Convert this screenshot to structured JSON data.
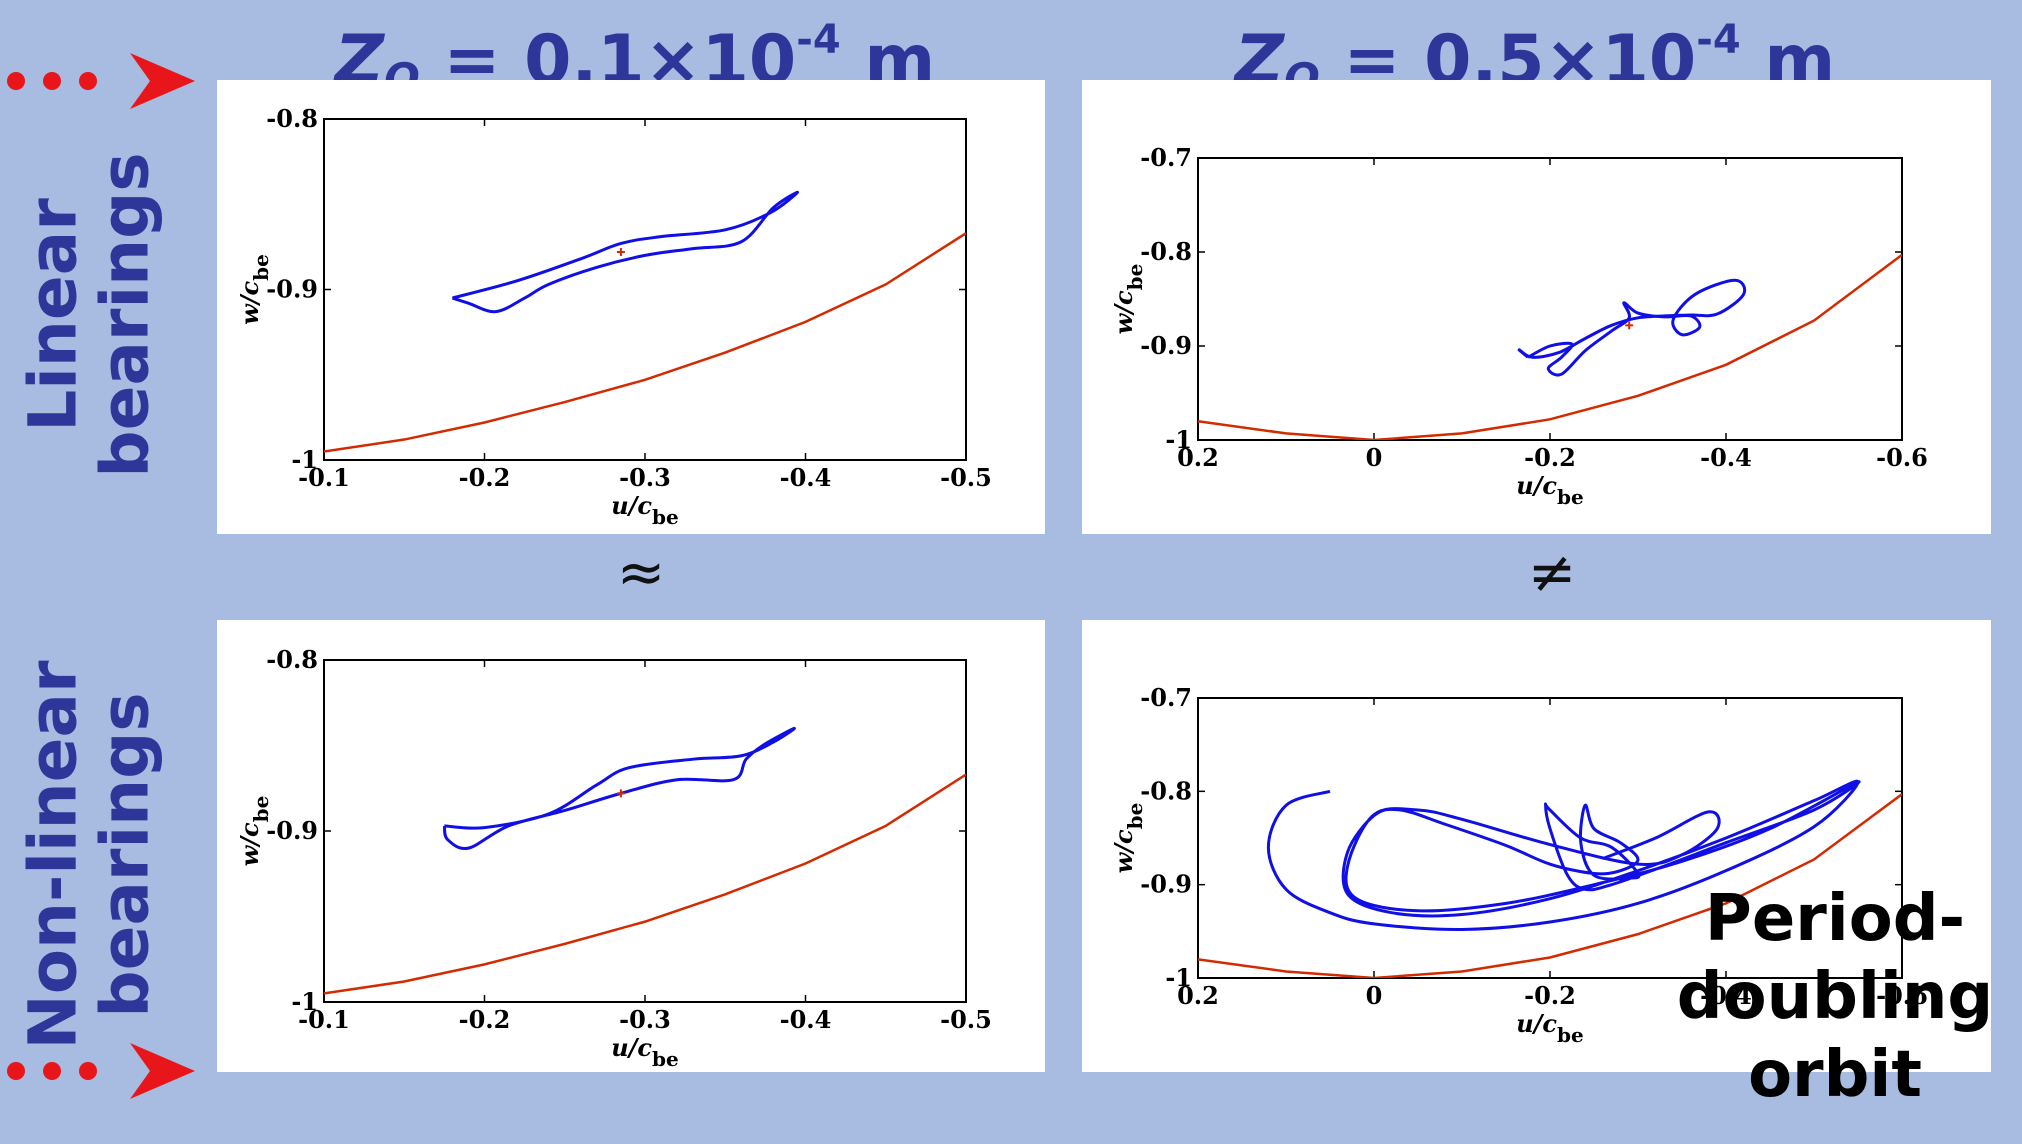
{
  "titles": {
    "left": {
      "var": "Z",
      "sub": "O",
      "eq": " = 0.1×10",
      "exp": "-4",
      "unit": " m"
    },
    "right": {
      "var": "Z",
      "sub": "O",
      "eq": " = 0.5×10",
      "exp": "-4",
      "unit": " m"
    }
  },
  "row_labels": {
    "top": [
      "Linear",
      "bearings"
    ],
    "bottom": [
      "Non-linear",
      "bearings"
    ]
  },
  "relations": {
    "left": "≈",
    "right": "≠"
  },
  "annotation": [
    "Period-",
    "doubling",
    "orbit"
  ],
  "colors": {
    "background": "#a7bce0",
    "title": "#2e3799",
    "orbit": "#1010e6",
    "boundary": "#d42a00",
    "arrow": "#e8161b"
  },
  "chart_data": [
    {
      "id": "linear-z01",
      "type": "line",
      "xlabel_main": "u/c",
      "xlabel_sub": "be",
      "ylabel_main": "w/c",
      "ylabel_sub": "be",
      "xlim": [
        -0.1,
        -0.5
      ],
      "ylim": [
        -1,
        -0.8
      ],
      "xticks": [
        -0.1,
        -0.2,
        -0.3,
        -0.4,
        -0.5
      ],
      "xtick_labels": [
        "-0.1",
        "-0.2",
        "-0.3",
        "-0.4",
        "-0.5"
      ],
      "yticks": [
        -1,
        -0.9,
        -0.8
      ],
      "ytick_labels": [
        "-1",
        "-0.9",
        "-0.8"
      ],
      "boundary": {
        "x": [
          -0.1,
          -0.15,
          -0.2,
          -0.25,
          -0.3,
          -0.35,
          -0.4,
          -0.45,
          -0.5
        ],
        "y": [
          -0.995,
          -0.988,
          -0.978,
          -0.966,
          -0.953,
          -0.937,
          -0.919,
          -0.897,
          -0.867
        ]
      },
      "orbit": {
        "x": [
          -0.18,
          -0.22,
          -0.26,
          -0.285,
          -0.31,
          -0.35,
          -0.378,
          -0.395,
          -0.38,
          -0.36,
          -0.33,
          -0.3,
          -0.27,
          -0.24,
          -0.225,
          -0.207,
          -0.19,
          -0.18
        ],
        "y": [
          -0.905,
          -0.895,
          -0.882,
          -0.873,
          -0.869,
          -0.865,
          -0.855,
          -0.843,
          -0.852,
          -0.872,
          -0.876,
          -0.88,
          -0.887,
          -0.897,
          -0.905,
          -0.913,
          -0.908,
          -0.905
        ]
      },
      "marker": {
        "x": -0.285,
        "y": -0.878
      }
    },
    {
      "id": "linear-z05",
      "type": "line",
      "xlabel_main": "u/c",
      "xlabel_sub": "be",
      "ylabel_main": "w/c",
      "ylabel_sub": "be",
      "xlim": [
        0.2,
        -0.6
      ],
      "ylim": [
        -1,
        -0.7
      ],
      "xticks": [
        0.2,
        0,
        -0.2,
        -0.4,
        -0.6
      ],
      "xtick_labels": [
        "0.2",
        "0",
        "-0.2",
        "-0.4",
        "-0.6"
      ],
      "yticks": [
        -1,
        -0.9,
        -0.8,
        -0.7
      ],
      "ytick_labels": [
        "-1",
        "-0.9",
        "-0.8",
        "-0.7"
      ],
      "boundary": {
        "x": [
          0.2,
          0.1,
          0.0,
          -0.1,
          -0.2,
          -0.3,
          -0.4,
          -0.5,
          -0.6
        ],
        "y": [
          -0.98,
          -0.993,
          -1.0,
          -0.993,
          -0.978,
          -0.953,
          -0.92,
          -0.873,
          -0.803
        ]
      },
      "orbit": {
        "x": [
          -0.175,
          -0.2,
          -0.225,
          -0.213,
          -0.198,
          -0.213,
          -0.24,
          -0.27,
          -0.29,
          -0.284,
          -0.3,
          -0.33,
          -0.36,
          -0.37,
          -0.35,
          -0.34,
          -0.365,
          -0.41,
          -0.42,
          -0.39,
          -0.36,
          -0.33,
          -0.3,
          -0.27,
          -0.24,
          -0.21,
          -0.18,
          -0.165,
          -0.175
        ],
        "y": [
          -0.912,
          -0.9,
          -0.898,
          -0.912,
          -0.924,
          -0.93,
          -0.905,
          -0.884,
          -0.87,
          -0.854,
          -0.865,
          -0.869,
          -0.868,
          -0.88,
          -0.888,
          -0.872,
          -0.845,
          -0.83,
          -0.845,
          -0.866,
          -0.867,
          -0.868,
          -0.87,
          -0.878,
          -0.892,
          -0.907,
          -0.912,
          -0.904,
          -0.912
        ]
      },
      "marker": {
        "x": -0.29,
        "y": -0.878
      }
    },
    {
      "id": "nonlinear-z01",
      "type": "line",
      "xlabel_main": "u/c",
      "xlabel_sub": "be",
      "ylabel_main": "w/c",
      "ylabel_sub": "be",
      "xlim": [
        -0.1,
        -0.5
      ],
      "ylim": [
        -1,
        -0.8
      ],
      "xticks": [
        -0.1,
        -0.2,
        -0.3,
        -0.4,
        -0.5
      ],
      "xtick_labels": [
        "-0.1",
        "-0.2",
        "-0.3",
        "-0.4",
        "-0.5"
      ],
      "yticks": [
        -1,
        -0.9,
        -0.8
      ],
      "ytick_labels": [
        "-1",
        "-0.9",
        "-0.8"
      ],
      "boundary": {
        "x": [
          -0.1,
          -0.15,
          -0.2,
          -0.25,
          -0.3,
          -0.35,
          -0.4,
          -0.45,
          -0.5
        ],
        "y": [
          -0.995,
          -0.988,
          -0.978,
          -0.966,
          -0.953,
          -0.937,
          -0.919,
          -0.897,
          -0.867
        ]
      },
      "orbit": {
        "x": [
          -0.175,
          -0.2,
          -0.24,
          -0.27,
          -0.29,
          -0.33,
          -0.36,
          -0.38,
          -0.393,
          -0.375,
          -0.363,
          -0.355,
          -0.32,
          -0.285,
          -0.25,
          -0.215,
          -0.19,
          -0.177,
          -0.175
        ],
        "y": [
          -0.897,
          -0.898,
          -0.89,
          -0.873,
          -0.863,
          -0.858,
          -0.856,
          -0.848,
          -0.84,
          -0.849,
          -0.858,
          -0.87,
          -0.87,
          -0.878,
          -0.888,
          -0.897,
          -0.91,
          -0.905,
          -0.897
        ]
      },
      "marker": {
        "x": -0.285,
        "y": -0.878
      }
    },
    {
      "id": "nonlinear-z05",
      "type": "line",
      "xlabel_main": "u/c",
      "xlabel_sub": "be",
      "ylabel_main": "w/c",
      "ylabel_sub": "be",
      "xlim": [
        0.2,
        -0.6
      ],
      "ylim": [
        -1,
        -0.7
      ],
      "xticks": [
        0.2,
        0,
        -0.2,
        -0.4,
        -0.6
      ],
      "xtick_labels": [
        "0.2",
        "0",
        "-0.2",
        "-0.4",
        "-0.6"
      ],
      "yticks": [
        -1,
        -0.9,
        -0.8,
        -0.7
      ],
      "ytick_labels": [
        "-1",
        "-0.9",
        "-0.8",
        "-0.7"
      ],
      "boundary": {
        "x": [
          0.2,
          0.1,
          0.0,
          -0.1,
          -0.2,
          -0.3,
          -0.4,
          -0.5,
          -0.6
        ],
        "y": [
          -0.98,
          -0.993,
          -1.0,
          -0.993,
          -0.978,
          -0.953,
          -0.92,
          -0.873,
          -0.803
        ]
      },
      "orbit": {
        "x": [
          0.05,
          0.1,
          0.12,
          0.1,
          0.05,
          0.0,
          -0.1,
          -0.2,
          -0.3,
          -0.4,
          -0.5,
          -0.55,
          -0.5,
          -0.4,
          -0.3,
          -0.2,
          -0.1,
          -0.02,
          0.03,
          0.03,
          0.0,
          -0.03,
          -0.08,
          -0.15,
          -0.2,
          -0.25,
          -0.28,
          -0.3,
          -0.28,
          -0.25,
          -0.24,
          -0.235,
          -0.25,
          -0.29,
          -0.3,
          -0.27,
          -0.235,
          -0.2,
          -0.195,
          -0.2,
          -0.22,
          -0.24,
          -0.27,
          -0.33,
          -0.4,
          -0.5,
          -0.55,
          -0.45,
          -0.35,
          -0.25,
          -0.15,
          -0.05,
          0.02,
          0.03,
          0.0,
          -0.05,
          -0.1,
          -0.2,
          -0.3,
          -0.35,
          -0.39,
          -0.38,
          -0.32,
          -0.26
        ],
        "y": [
          -0.8,
          -0.815,
          -0.86,
          -0.905,
          -0.93,
          -0.942,
          -0.948,
          -0.94,
          -0.92,
          -0.885,
          -0.838,
          -0.79,
          -0.81,
          -0.85,
          -0.885,
          -0.915,
          -0.932,
          -0.93,
          -0.91,
          -0.865,
          -0.826,
          -0.82,
          -0.835,
          -0.858,
          -0.878,
          -0.888,
          -0.885,
          -0.873,
          -0.855,
          -0.84,
          -0.815,
          -0.855,
          -0.89,
          -0.893,
          -0.888,
          -0.86,
          -0.85,
          -0.82,
          -0.815,
          -0.84,
          -0.89,
          -0.905,
          -0.9,
          -0.88,
          -0.855,
          -0.82,
          -0.79,
          -0.84,
          -0.875,
          -0.9,
          -0.92,
          -0.928,
          -0.915,
          -0.88,
          -0.825,
          -0.82,
          -0.83,
          -0.857,
          -0.878,
          -0.868,
          -0.84,
          -0.822,
          -0.85,
          -0.872
        ]
      },
      "marker": null
    }
  ]
}
